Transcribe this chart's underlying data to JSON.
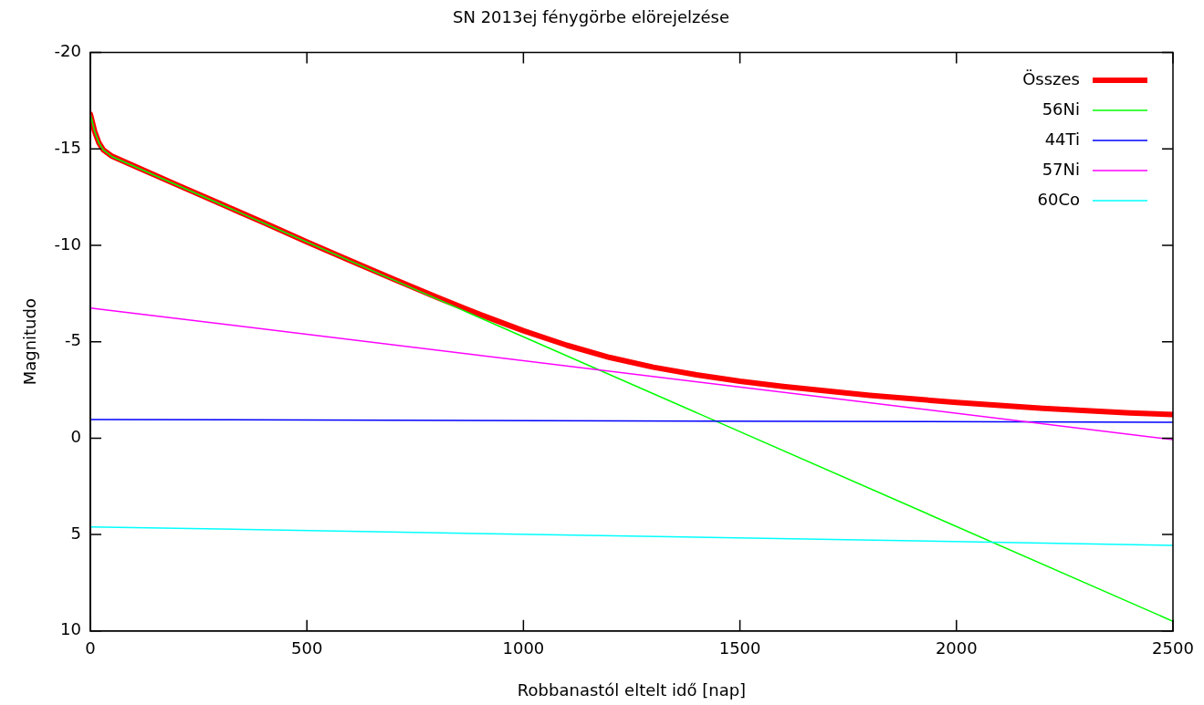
{
  "chart_data": {
    "type": "line",
    "title": "SN 2013ej fénygörbe elörejelzése",
    "xlabel": "Robbanastól eltelt idő [nap]",
    "ylabel": "Magnitudo",
    "xlim": [
      0,
      2500
    ],
    "xticks": [
      0,
      500,
      1000,
      1500,
      2000,
      2500
    ],
    "ylim": [
      10,
      -20
    ],
    "yticks": [
      10,
      5,
      0,
      -5,
      -10,
      -15,
      -20
    ],
    "grid": false,
    "legend": "top right",
    "marker": "none",
    "line_style": "solid",
    "series": [
      {
        "name": "Összes",
        "color": "#ff0000",
        "x": [
          0,
          10,
          20,
          30,
          50,
          100,
          200,
          300,
          400,
          500,
          600,
          700,
          800,
          900,
          1000,
          1100,
          1200,
          1300,
          1400,
          1500,
          1600,
          1800,
          2000,
          2200,
          2400,
          2500
        ],
        "values": [
          -16.8,
          -15.9,
          -15.3,
          -14.95,
          -14.62,
          -14.13,
          -13.14,
          -12.16,
          -11.18,
          -10.18,
          -9.21,
          -8.25,
          -7.31,
          -6.41,
          -5.57,
          -4.82,
          -4.18,
          -3.68,
          -3.28,
          -2.95,
          -2.68,
          -2.22,
          -1.85,
          -1.55,
          -1.31,
          -1.22
        ]
      },
      {
        "name": "56Ni",
        "color": "#00ff00",
        "x": [
          0,
          10,
          20,
          30,
          50,
          2500
        ],
        "values": [
          -16.8,
          -15.9,
          -15.3,
          -14.95,
          -14.6,
          9.5
        ]
      },
      {
        "name": "44Ti",
        "color": "#0000ff",
        "x": [
          0,
          2500
        ],
        "values": [
          -0.97,
          -0.82
        ]
      },
      {
        "name": "57Ni",
        "color": "#ff00ff",
        "x": [
          0,
          2500
        ],
        "values": [
          -6.75,
          0.08
        ]
      },
      {
        "name": "60Co",
        "color": "#00ffff",
        "x": [
          0,
          2500
        ],
        "values": [
          4.6,
          5.56
        ]
      }
    ]
  }
}
